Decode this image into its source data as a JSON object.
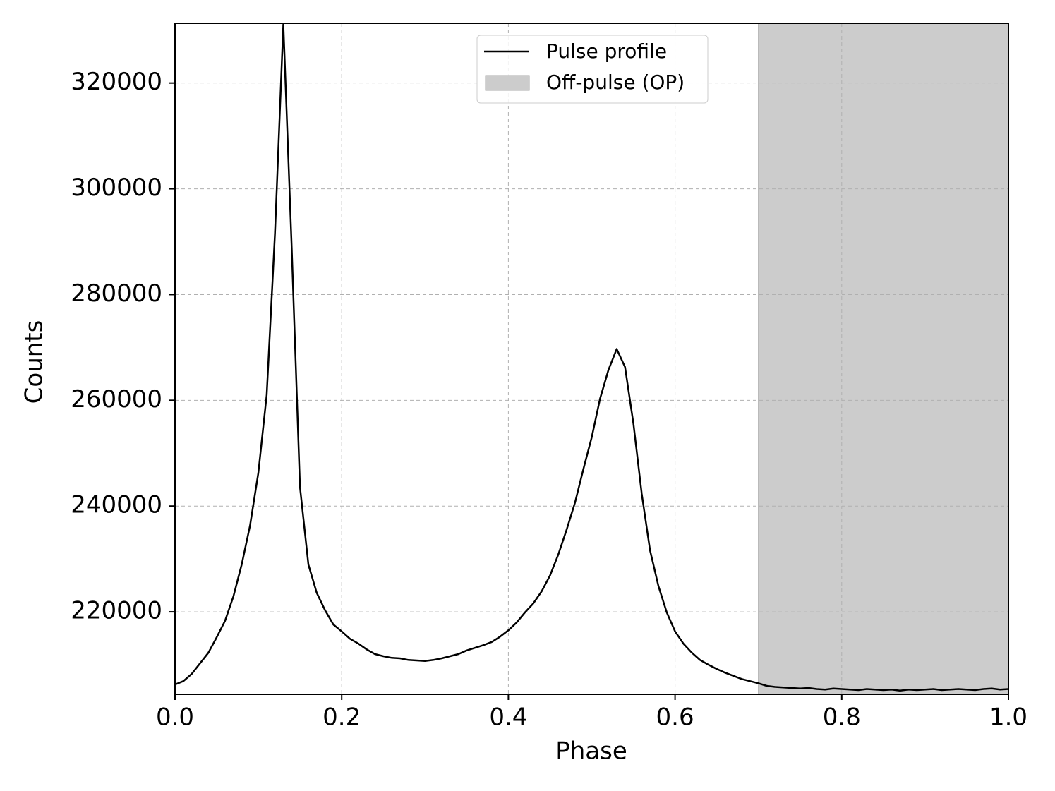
{
  "chart_data": {
    "type": "line",
    "xlabel": "Phase",
    "ylabel": "Counts",
    "x": [
      0.0,
      0.01,
      0.02,
      0.03,
      0.04,
      0.05,
      0.06,
      0.07,
      0.08,
      0.09,
      0.1,
      0.11,
      0.12,
      0.13,
      0.14,
      0.15,
      0.16,
      0.17,
      0.18,
      0.19,
      0.2,
      0.21,
      0.22,
      0.23,
      0.24,
      0.25,
      0.26,
      0.27,
      0.28,
      0.29,
      0.3,
      0.31,
      0.32,
      0.33,
      0.34,
      0.35,
      0.36,
      0.37,
      0.38,
      0.39,
      0.4,
      0.41,
      0.42,
      0.43,
      0.44,
      0.45,
      0.46,
      0.47,
      0.48,
      0.49,
      0.5,
      0.51,
      0.52,
      0.53,
      0.54,
      0.55,
      0.56,
      0.57,
      0.58,
      0.59,
      0.6,
      0.61,
      0.62,
      0.63,
      0.64,
      0.65,
      0.66,
      0.67,
      0.68,
      0.69,
      0.7,
      0.71,
      0.72,
      0.73,
      0.74,
      0.75,
      0.76,
      0.77,
      0.78,
      0.79,
      0.8,
      0.81,
      0.82,
      0.83,
      0.84,
      0.85,
      0.86,
      0.87,
      0.88,
      0.89,
      0.9,
      0.91,
      0.92,
      0.93,
      0.94,
      0.95,
      0.96,
      0.97,
      0.98,
      0.99,
      1.0
    ],
    "series": [
      {
        "name": "Pulse profile",
        "color": "#000000",
        "values": [
          206250,
          206900,
          208250,
          210250,
          212250,
          215200,
          218300,
          222900,
          228950,
          236300,
          246300,
          261000,
          291700,
          331100,
          289000,
          243600,
          228950,
          223600,
          220300,
          217600,
          216300,
          214900,
          214000,
          212900,
          212000,
          211600,
          211300,
          211200,
          210900,
          210800,
          210700,
          210900,
          211200,
          211600,
          212000,
          212700,
          213200,
          213700,
          214300,
          215300,
          216500,
          218000,
          219900,
          221600,
          223900,
          226900,
          230900,
          235600,
          240700,
          247000,
          253000,
          260300,
          265700,
          269700,
          266300,
          255600,
          242300,
          231600,
          224900,
          219900,
          216300,
          214000,
          212300,
          210900,
          210000,
          209200,
          208500,
          207900,
          207300,
          206900,
          206500,
          206000,
          205800,
          205700,
          205600,
          205500,
          205600,
          205400,
          205300,
          205500,
          205400,
          205300,
          205200,
          205400,
          205300,
          205200,
          205300,
          205100,
          205300,
          205200,
          205300,
          205400,
          205200,
          205300,
          205400,
          205300,
          205200,
          205400,
          205500,
          205300,
          205400
        ]
      }
    ],
    "span": {
      "name": "Off-pulse (OP)",
      "color": "#cccccc",
      "xmin": 0.7,
      "xmax": 1.0
    },
    "xlim": [
      0,
      1
    ],
    "ylim": [
      204400,
      331300
    ],
    "xticks": [
      {
        "value": 0,
        "label": "0.0"
      },
      0.2,
      0.4,
      0.6,
      0.8,
      {
        "value": 1,
        "label": "1.0"
      }
    ],
    "yticks": [
      220000,
      240000,
      260000,
      280000,
      300000,
      320000
    ],
    "grid": true,
    "legend": "upper center"
  }
}
